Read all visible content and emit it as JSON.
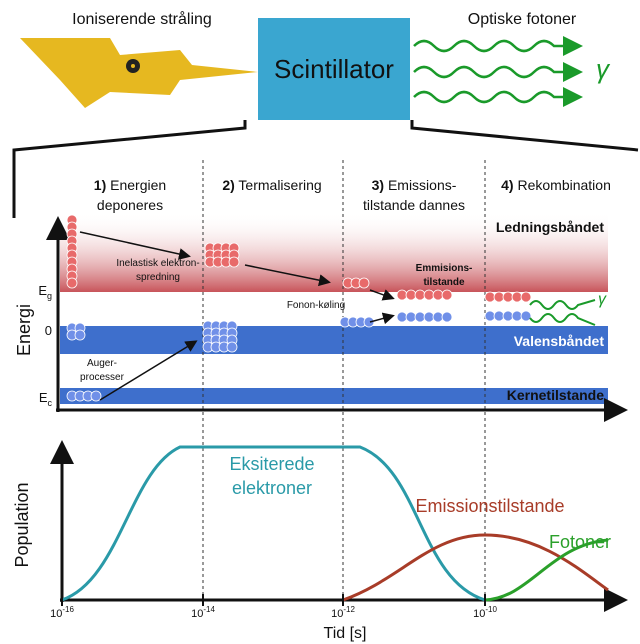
{
  "header": {
    "left_label": "Ioniserende stråling",
    "center_label": "Scintillator",
    "right_label": "Optiske fotoner",
    "gamma": "γ"
  },
  "energy_panel": {
    "y_label": "Energi",
    "levels": [
      {
        "symbol": "E",
        "subscript": "g"
      },
      {
        "symbol": "0",
        "subscript": ""
      },
      {
        "symbol": "E",
        "subscript": "c"
      }
    ],
    "steps": [
      {
        "number": "1)",
        "lines": [
          "Energien",
          "deponeres"
        ]
      },
      {
        "number": "2)",
        "lines": [
          "Termalisering"
        ]
      },
      {
        "number": "3)",
        "lines": [
          "Emissions-",
          "tilstande dannes"
        ]
      },
      {
        "number": "4)",
        "lines": [
          "Rekombination"
        ]
      }
    ],
    "bands": [
      "Ledningsbåndet",
      "Valensbåndet",
      "Kernetilstande"
    ],
    "annotations": {
      "inelastic": [
        "Inelastisk elektron-",
        "spredning"
      ],
      "phonon": "Fonon-køling",
      "auger": [
        "Auger-",
        "processer"
      ],
      "emission_states": [
        "Emmisions-",
        "tilstande"
      ],
      "gamma": "γ"
    }
  },
  "population_panel": {
    "y_label": "Population",
    "x_label": "Tid [s]",
    "curves": [
      {
        "name": [
          "Eksiterede",
          "elektroner"
        ],
        "color": "#2a9aa8"
      },
      {
        "name": [
          "Emissionstilstande"
        ],
        "color": "#a83c28"
      },
      {
        "name": [
          "Fotoner"
        ],
        "color": "#2aa02a"
      }
    ],
    "ticks": [
      {
        "base": "10",
        "exponent": "-16"
      },
      {
        "base": "10",
        "exponent": "-14"
      },
      {
        "base": "10",
        "exponent": "-12"
      },
      {
        "base": "10",
        "exponent": "-10"
      }
    ]
  }
}
